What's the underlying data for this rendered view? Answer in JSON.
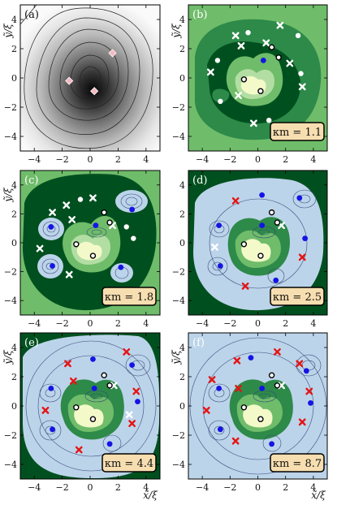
{
  "figure": {
    "ylabel": "ỹ/ξ",
    "xlabel": "x̃/ξ",
    "xticks": [
      "−4",
      "−2",
      "0",
      "2",
      "4"
    ],
    "yticks": [
      "4",
      "2",
      "0",
      "−2",
      "−4"
    ]
  },
  "chart_data": [
    {
      "panel": "(a)",
      "type": "heatmap",
      "xlim": [
        -5,
        5
      ],
      "ylim": [
        -5,
        5
      ],
      "markers": {
        "diamonds": [
          [
            1.6,
            1.7
          ],
          [
            -1.5,
            -0.2
          ],
          [
            0.3,
            -0.9
          ]
        ]
      }
    },
    {
      "panel": "(b)",
      "type": "heatmap",
      "kappa_label": "κm = 1.1",
      "xlim": [
        -5,
        5
      ],
      "ylim": [
        -5,
        5
      ],
      "markers": {
        "white_dots": [
          [
            -0.7,
            3.1
          ],
          [
            2.9,
            2.9
          ],
          [
            -2.9,
            1.2
          ],
          [
            3.1,
            0.3
          ],
          [
            -2.7,
            -1.6
          ],
          [
            0.8,
            -2.9
          ]
        ],
        "white_x": [
          [
            -1.6,
            2.9
          ],
          [
            1.6,
            3.6
          ],
          [
            -1.2,
            2.2
          ],
          [
            0.6,
            2.4
          ],
          [
            2.3,
            1.0
          ],
          [
            -3.4,
            0.4
          ],
          [
            -1.4,
            -1.2
          ],
          [
            -0.3,
            -3.1
          ],
          [
            3.2,
            -0.6
          ]
        ],
        "blue_dots": [
          [
            0.4,
            1.2
          ]
        ],
        "black_circles": [
          [
            1.0,
            2.1
          ],
          [
            1.5,
            1.4
          ],
          [
            -1.0,
            -0.1
          ],
          [
            0.2,
            -0.9
          ]
        ]
      }
    },
    {
      "panel": "(c)",
      "type": "heatmap",
      "kappa_label": "κm = 1.8",
      "xlim": [
        -5,
        5
      ],
      "ylim": [
        -5,
        5
      ],
      "markers": {
        "white_dots": [
          [
            -0.7,
            3.0
          ],
          [
            3.1,
            0.3
          ],
          [
            2.6,
            1.1
          ]
        ],
        "white_x": [
          [
            -1.7,
            2.6
          ],
          [
            0.2,
            3.1
          ],
          [
            -2.7,
            2.1
          ],
          [
            -1.3,
            1.6
          ],
          [
            -3.6,
            -0.4
          ],
          [
            -1.5,
            -2.2
          ],
          [
            1.6,
            1.2
          ]
        ],
        "blue_dots": [
          [
            3.0,
            2.3
          ],
          [
            -2.8,
            1.1
          ],
          [
            0.4,
            1.2
          ],
          [
            -2.7,
            -1.6
          ],
          [
            2.2,
            -1.7
          ]
        ],
        "black_circles": [
          [
            1.0,
            2.1
          ],
          [
            1.4,
            1.4
          ],
          [
            -1.0,
            -0.1
          ],
          [
            0.2,
            -0.9
          ]
        ]
      }
    },
    {
      "panel": "(d)",
      "type": "heatmap",
      "kappa_label": "κm = 2.5",
      "xlim": [
        -5,
        5
      ],
      "ylim": [
        -5,
        5
      ],
      "markers": {
        "white_x": [
          [
            1.7,
            1.2
          ],
          [
            -3.1,
            -0.3
          ]
        ],
        "red_x": [
          [
            -1.6,
            2.9
          ],
          [
            3.2,
            -1.0
          ],
          [
            -0.9,
            -3.0
          ]
        ],
        "blue_dots": [
          [
            0.3,
            3.3
          ],
          [
            3.0,
            3.1
          ],
          [
            -2.8,
            1.2
          ],
          [
            0.3,
            1.2
          ],
          [
            3.4,
            0.3
          ],
          [
            -2.7,
            -1.6
          ],
          [
            1.3,
            -2.6
          ]
        ],
        "black_circles": [
          [
            1.0,
            2.1
          ],
          [
            1.4,
            1.4
          ],
          [
            -1.0,
            -0.1
          ],
          [
            0.2,
            -0.9
          ]
        ]
      }
    },
    {
      "panel": "(e)",
      "type": "heatmap",
      "kappa_label": "κm = 4.4",
      "xlim": [
        -5,
        5
      ],
      "ylim": [
        -5,
        5
      ],
      "markers": {
        "white_x": [
          [
            1.7,
            1.4
          ],
          [
            2.8,
            -0.6
          ]
        ],
        "red_x": [
          [
            -1.6,
            2.9
          ],
          [
            2.6,
            3.7
          ],
          [
            -1.2,
            1.7
          ],
          [
            3.3,
            1.0
          ],
          [
            -3.2,
            -0.3
          ],
          [
            3.0,
            -1.2
          ],
          [
            -0.8,
            -3.0
          ]
        ],
        "blue_dots": [
          [
            0.2,
            3.2
          ],
          [
            3.0,
            2.8
          ],
          [
            -2.8,
            1.2
          ],
          [
            0.3,
            1.2
          ],
          [
            3.4,
            0.3
          ],
          [
            -2.7,
            -1.6
          ],
          [
            1.4,
            -2.6
          ]
        ],
        "black_circles": [
          [
            1.0,
            2.1
          ],
          [
            1.4,
            1.4
          ],
          [
            -1.0,
            -0.1
          ],
          [
            0.2,
            -0.9
          ]
        ]
      }
    },
    {
      "panel": "(f)",
      "type": "heatmap",
      "kappa_label": "κm = 8.7",
      "xlim": [
        -5,
        5
      ],
      "ylim": [
        -5,
        5
      ],
      "markers": {
        "white_x": [
          [
            1.7,
            1.4
          ]
        ],
        "red_x": [
          [
            -1.5,
            3.1
          ],
          [
            1.4,
            3.7
          ],
          [
            3.0,
            2.9
          ],
          [
            -3.3,
            1.8
          ],
          [
            3.7,
            1.0
          ],
          [
            -1.4,
            1.2
          ],
          [
            -3.7,
            -0.3
          ],
          [
            3.2,
            -1.1
          ],
          [
            -1.6,
            -2.4
          ],
          [
            1.4,
            -3.6
          ]
        ],
        "blue_dots": [
          [
            -0.5,
            3.3
          ],
          [
            3.5,
            2.4
          ],
          [
            -2.8,
            1.2
          ],
          [
            0.3,
            1.2
          ],
          [
            3.8,
            0.2
          ],
          [
            -2.7,
            -1.6
          ],
          [
            1.0,
            -2.6
          ]
        ],
        "black_circles": [
          [
            1.0,
            2.1
          ],
          [
            1.4,
            1.4
          ],
          [
            -1.0,
            -0.1
          ],
          [
            0.2,
            -0.9
          ]
        ]
      }
    }
  ],
  "colors": {
    "green_dark": "#00501f",
    "green_mid": "#2d8a49",
    "green_light": "#6fbc6a",
    "green_pale": "#b3dea3",
    "yellow_pale": "#f3f9c9",
    "blue_region": "#bcd4ea",
    "blue_dot": "#1414e6",
    "red_x": "#e51414",
    "label_box": "#f7deb0"
  }
}
